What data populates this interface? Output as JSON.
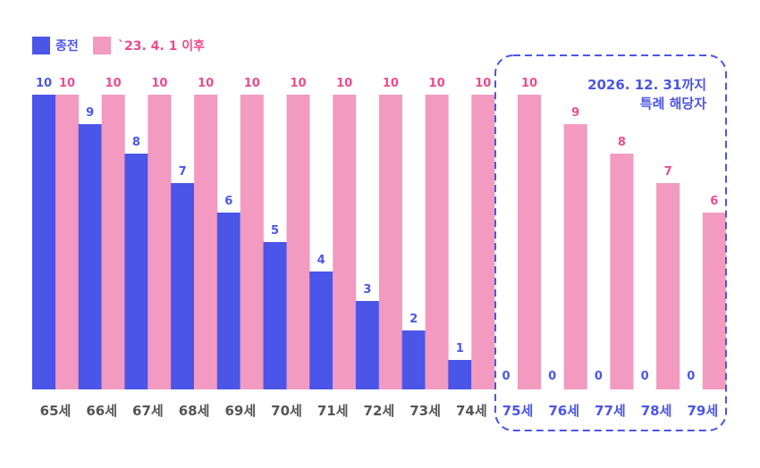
{
  "chart_data": {
    "type": "bar",
    "categories": [
      "65세",
      "66세",
      "67세",
      "68세",
      "69세",
      "70세",
      "71세",
      "72세",
      "73세",
      "74세",
      "75세",
      "76세",
      "77세",
      "78세",
      "79세"
    ],
    "series": [
      {
        "name": "종전",
        "color": "#4b55e8",
        "values": [
          10,
          9,
          8,
          7,
          6,
          5,
          4,
          3,
          2,
          1,
          0,
          0,
          0,
          0,
          0
        ]
      },
      {
        "name": "`23. 4. 1 이후",
        "color": "#f29ac0",
        "label_color": "#ee4a8b",
        "values": [
          10,
          10,
          10,
          10,
          10,
          10,
          10,
          10,
          10,
          10,
          10,
          9,
          8,
          7,
          6
        ]
      }
    ],
    "ylim": [
      0,
      10
    ],
    "grid": false,
    "legend": "top-left",
    "annotation": {
      "lines": [
        "2026. 12. 31까지",
        "특례 해당자"
      ],
      "categories": [
        "75세",
        "76세",
        "77세",
        "78세",
        "79세"
      ],
      "color": "#4b55e8"
    },
    "tick_color_default": "#555555"
  }
}
